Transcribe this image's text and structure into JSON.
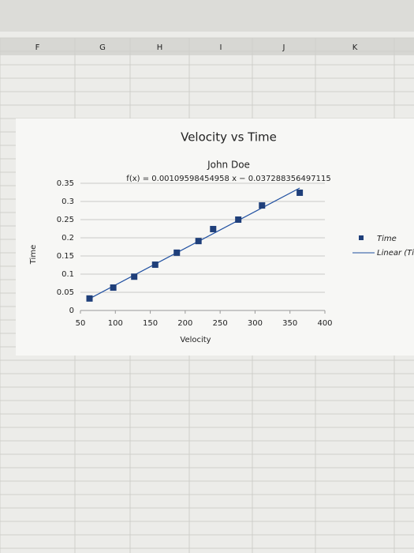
{
  "sheet": {
    "columns": [
      "F",
      "G",
      "H",
      "I",
      "J",
      "K"
    ]
  },
  "chart_data": {
    "type": "scatter",
    "title": "Velocity vs Time",
    "subtitle": "John Doe",
    "equation": "f(x) = 0.00109598454958 x − 0.037288356497115",
    "x_label": "Velocity",
    "y_label": "Time",
    "series": [
      {
        "name": "Time",
        "color": "#1f3f7a",
        "x": [
          63,
          97,
          127,
          157,
          188,
          219,
          240,
          276,
          310,
          364
        ],
        "values": [
          0.033,
          0.063,
          0.093,
          0.126,
          0.159,
          0.191,
          0.224,
          0.25,
          0.289,
          0.324
        ]
      }
    ],
    "trendline_label": "Linear (Ti",
    "trendline_color": "#1f4fa0",
    "xlim": [
      50,
      400
    ],
    "xticks": [
      50,
      100,
      150,
      200,
      250,
      300,
      350,
      400
    ],
    "ylim": [
      0,
      0.35
    ],
    "yticks": [
      0,
      0.05,
      0.1,
      0.15,
      0.2,
      0.25,
      0.3,
      0.35
    ],
    "grid": true,
    "legend": "right"
  }
}
